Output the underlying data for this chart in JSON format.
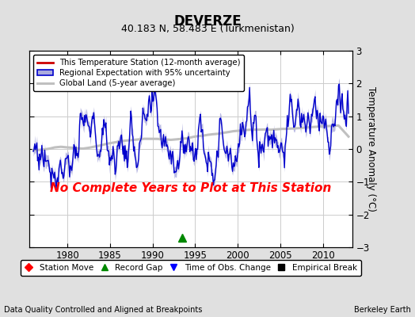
{
  "title": "DEVERZE",
  "subtitle": "40.183 N, 58.483 E (Turkmenistan)",
  "ylabel": "Temperature Anomaly (°C)",
  "ylim": [
    -3,
    3
  ],
  "xlim": [
    1975.5,
    2013.5
  ],
  "xticks": [
    1980,
    1985,
    1990,
    1995,
    2000,
    2005,
    2010
  ],
  "yticks": [
    -3,
    -2,
    -1,
    0,
    1,
    2,
    3
  ],
  "footer_left": "Data Quality Controlled and Aligned at Breakpoints",
  "footer_right": "Berkeley Earth",
  "no_complete_text": "No Complete Years to Plot at This Station",
  "fig_background_color": "#e0e0e0",
  "plot_background": "#ffffff",
  "regional_color": "#0000cc",
  "regional_fill_color": "#aaaadd",
  "station_color": "#cc0000",
  "global_color": "#c0c0c0",
  "record_gap_x": 1993.5,
  "record_gap_y": -2.72
}
